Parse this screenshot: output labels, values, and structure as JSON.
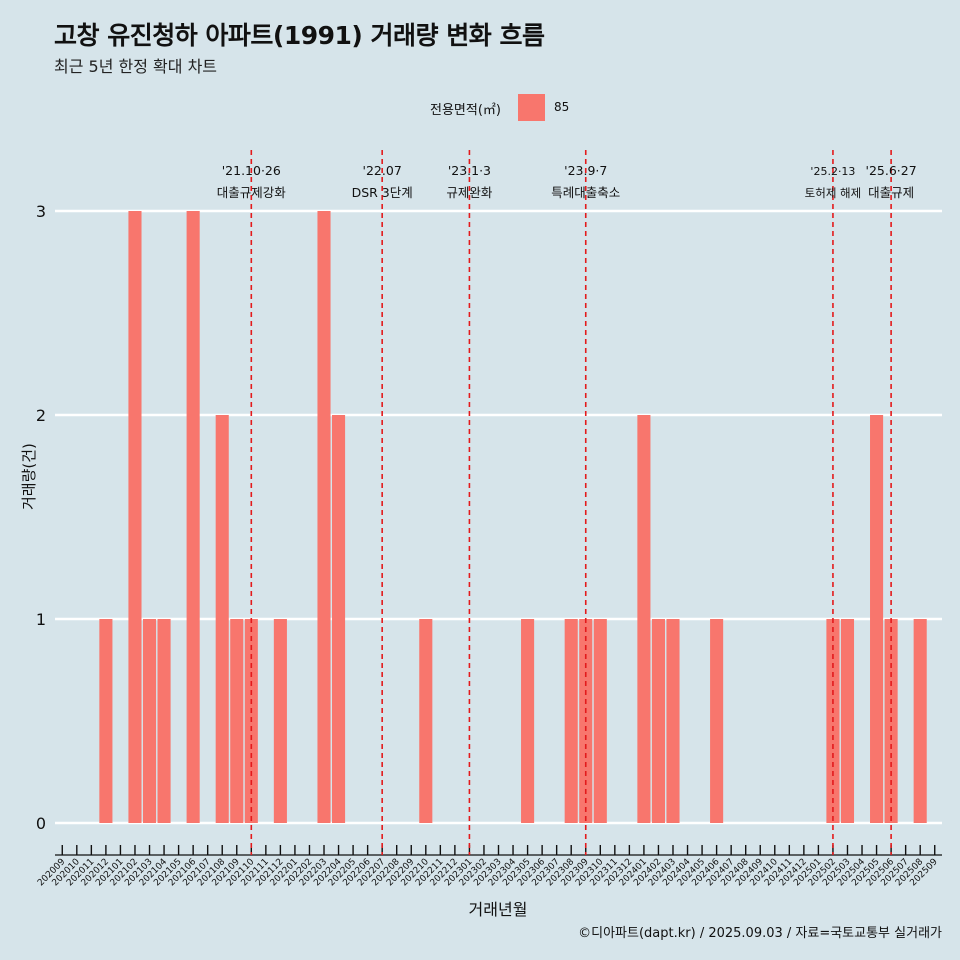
{
  "title": "고창 유진청하 아파트(1991) 거래량 변화 흐름",
  "subtitle": "최근 5년 한정 확대 차트",
  "legend": {
    "title": "전용면적(㎡)",
    "label": "85"
  },
  "caption": "©디아파트(dapt.kr) / 2025.09.03 / 자료=국토교통부 실거래가",
  "colors": {
    "bar": "#f8766d",
    "background": "#d6e4ea",
    "grid": "#ffffff",
    "event_line": "#e31a1c"
  },
  "chart_data": {
    "type": "bar",
    "xlabel": "거래년월",
    "ylabel": "거래량(건)",
    "ylim": [
      0,
      3
    ],
    "yticks": [
      0,
      1,
      2,
      3
    ],
    "grid": true,
    "legend_position": "top",
    "categories": [
      "202009",
      "202010",
      "202011",
      "202012",
      "202101",
      "202102",
      "202103",
      "202104",
      "202105",
      "202106",
      "202107",
      "202108",
      "202109",
      "202110",
      "202111",
      "202112",
      "202201",
      "202202",
      "202203",
      "202204",
      "202205",
      "202206",
      "202207",
      "202208",
      "202209",
      "202210",
      "202211",
      "202212",
      "202301",
      "202302",
      "202303",
      "202304",
      "202305",
      "202306",
      "202307",
      "202308",
      "202309",
      "202310",
      "202311",
      "202312",
      "202401",
      "202402",
      "202403",
      "202404",
      "202405",
      "202406",
      "202407",
      "202408",
      "202409",
      "202410",
      "202411",
      "202412",
      "202501",
      "202502",
      "202503",
      "202504",
      "202505",
      "202506",
      "202507",
      "202508",
      "202509"
    ],
    "series": [
      {
        "name": "85",
        "values": [
          0,
          0,
          0,
          1,
          0,
          3,
          1,
          1,
          0,
          3,
          0,
          2,
          1,
          1,
          0,
          1,
          0,
          0,
          3,
          2,
          0,
          0,
          0,
          0,
          0,
          1,
          0,
          0,
          0,
          0,
          0,
          0,
          1,
          0,
          0,
          1,
          1,
          1,
          0,
          0,
          2,
          1,
          1,
          0,
          0,
          1,
          0,
          0,
          0,
          0,
          0,
          0,
          0,
          1,
          1,
          0,
          2,
          1,
          0,
          1,
          0
        ]
      }
    ],
    "annotations": [
      {
        "date_label": "'21.10·26",
        "text": "대출규제강화",
        "category": "202110"
      },
      {
        "date_label": "'22.07",
        "text": "DSR 3단계",
        "category": "202207"
      },
      {
        "date_label": "'23.1·3",
        "text": "규제완화",
        "category": "202301"
      },
      {
        "date_label": "'23.9·7",
        "text": "특례대출축소",
        "category": "202309"
      },
      {
        "date_label": "'25.2·13",
        "text": "토허제 해제",
        "category": "202502"
      },
      {
        "date_label": "'25.6·27",
        "text": "대출규제",
        "category": "202506"
      }
    ]
  }
}
